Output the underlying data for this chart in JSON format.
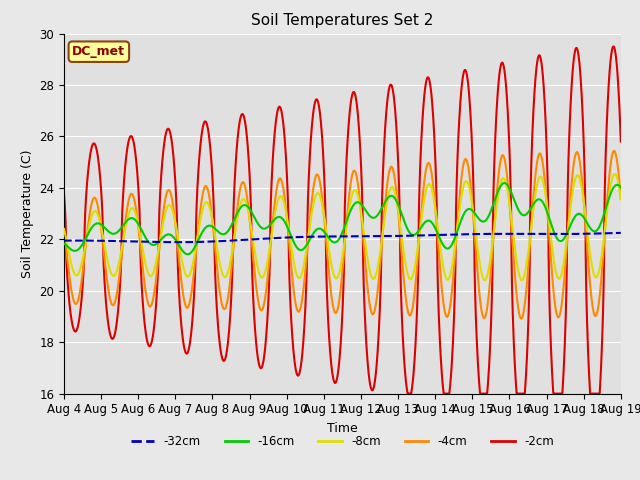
{
  "title": "Soil Temperatures Set 2",
  "xlabel": "Time",
  "ylabel": "Soil Temperature (C)",
  "ylim": [
    16,
    30
  ],
  "background_color": "#e8e8e8",
  "plot_bg_color": "#e0e0e0",
  "annotation_label": "DC_met",
  "annotation_box_color": "#ffff99",
  "annotation_box_edge": "#8B4513",
  "x_tick_labels": [
    "Aug 4",
    "Aug 5",
    "Aug 6",
    "Aug 7",
    "Aug 8",
    "Aug 9",
    "Aug 10",
    "Aug 11",
    "Aug 12",
    "Aug 13",
    "Aug 14",
    "Aug 15",
    "Aug 16",
    "Aug 17",
    "Aug 18",
    "Aug 19"
  ],
  "series": {
    "m32cm": {
      "label": "-32cm",
      "color": "#0000bb",
      "lw": 1.5,
      "ls": "--"
    },
    "m16cm": {
      "label": "-16cm",
      "color": "#00cc00",
      "lw": 1.5,
      "ls": "-"
    },
    "m8cm": {
      "label": "-8cm",
      "color": "#dddd00",
      "lw": 1.5,
      "ls": "-"
    },
    "m4cm": {
      "label": "-4cm",
      "color": "#ff8800",
      "lw": 1.5,
      "ls": "-"
    },
    "m2cm": {
      "label": "-2cm",
      "color": "#dd0000",
      "lw": 1.5,
      "ls": "-"
    }
  }
}
